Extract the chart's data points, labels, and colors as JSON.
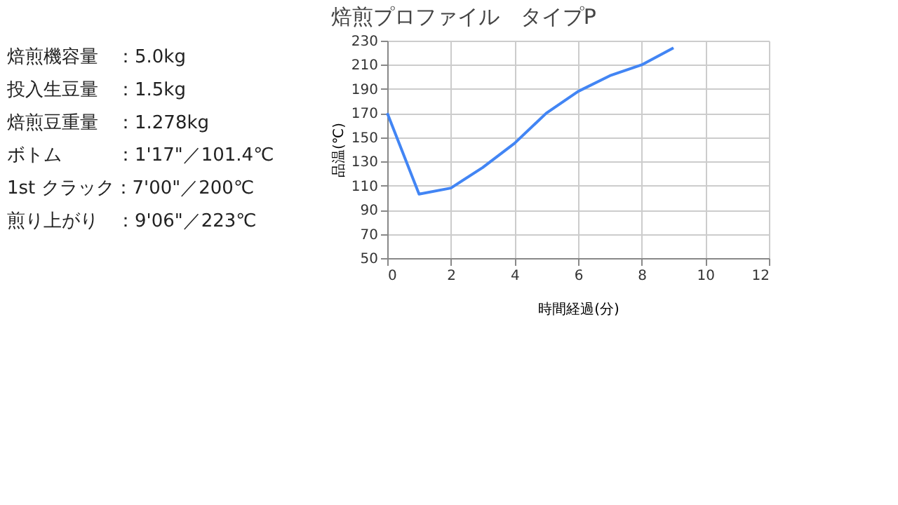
{
  "chart_data": {
    "type": "line",
    "title": "焙煎プロファイル　タイプP",
    "xlabel": "時間経過(分)",
    "ylabel": "品温(℃)",
    "x": [
      0,
      1,
      2,
      3,
      4,
      5,
      6,
      7,
      8,
      9
    ],
    "series": [
      {
        "color": "#4285f4",
        "values": [
          170,
          103,
          108,
          125,
          145,
          170,
          188,
          201,
          210,
          224
        ]
      }
    ],
    "xlim": [
      0,
      12
    ],
    "xticks": [
      0,
      2,
      4,
      6,
      8,
      10,
      12
    ],
    "ylim": [
      50,
      230
    ],
    "yticks": [
      50,
      70,
      90,
      110,
      130,
      150,
      170,
      190,
      210,
      230
    ],
    "grid": true,
    "marker": "none",
    "line_style": "solid",
    "annotations": [
      "焙煎機容量　：5.0kg",
      "投入生豆量　：1.5kg",
      "焙煎豆重量　：1.278kg",
      "ボトム　　　：1'17\"／101.4℃",
      "1st クラック：7'00\"／200℃",
      "煎り上がり　：9'06\"／223℃"
    ]
  }
}
